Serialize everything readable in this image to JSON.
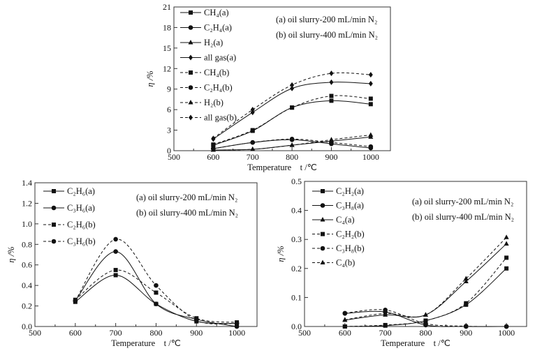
{
  "chart_data": [
    {
      "id": "top",
      "type": "line",
      "title": "",
      "xlabel": "Temperature    t /℃",
      "ylabel": "η /%",
      "xlim": [
        500,
        1050
      ],
      "ylim": [
        0,
        21
      ],
      "xticks": [
        500,
        600,
        700,
        800,
        900,
        1000
      ],
      "yticks": [
        0,
        3,
        6,
        9,
        12,
        15,
        18,
        21
      ],
      "annotations": [
        "(a) oil slurry-200 mL/min N₂",
        "(b) oil slurry-400 mL/min N₂"
      ],
      "x": [
        600,
        700,
        800,
        900,
        1000
      ],
      "series": [
        {
          "name": "CH₄(a)",
          "line": "solid",
          "marker": "square",
          "values": [
            0.8,
            2.9,
            6.3,
            7.3,
            6.8
          ]
        },
        {
          "name": "C₂H₄(a)",
          "line": "solid",
          "marker": "circle",
          "values": [
            0.3,
            1.2,
            1.6,
            1.0,
            0.4
          ]
        },
        {
          "name": "H₂(a)",
          "line": "solid",
          "marker": "triangle",
          "values": [
            0.1,
            0.2,
            0.8,
            1.4,
            2.0
          ]
        },
        {
          "name": "all gas(a)",
          "line": "solid",
          "marker": "diamond",
          "values": [
            1.7,
            5.6,
            9.1,
            10.0,
            9.8
          ]
        },
        {
          "name": "CH₄(b)",
          "line": "dashed",
          "marker": "square",
          "values": [
            0.9,
            3.0,
            6.3,
            8.0,
            7.6
          ]
        },
        {
          "name": "C₂H₄(b)",
          "line": "dashed",
          "marker": "circle",
          "values": [
            0.3,
            1.2,
            1.7,
            1.2,
            0.6
          ]
        },
        {
          "name": "H₂(b)",
          "line": "dashed",
          "marker": "triangle",
          "values": [
            0.1,
            0.2,
            0.8,
            1.6,
            2.3
          ]
        },
        {
          "name": "all gas(b)",
          "line": "dashed",
          "marker": "diamond",
          "values": [
            1.8,
            6.0,
            9.6,
            11.3,
            11.1
          ]
        }
      ]
    },
    {
      "id": "bottom-left",
      "type": "line",
      "title": "",
      "xlabel": "Temperature    t /℃",
      "ylabel": "η /%",
      "xlim": [
        500,
        1050
      ],
      "ylim": [
        0,
        1.4
      ],
      "xticks": [
        500,
        600,
        700,
        800,
        900,
        1000
      ],
      "yticks": [
        0.0,
        0.2,
        0.4,
        0.6,
        0.8,
        1.0,
        1.2,
        1.4
      ],
      "annotations": [
        "(a) oil slurry-200 mL/min N₂",
        "(b) oil slurry-400 mL/min N₂"
      ],
      "x": [
        600,
        700,
        800,
        900,
        1000
      ],
      "series": [
        {
          "name": "C₂H₆(a)",
          "line": "solid",
          "marker": "square",
          "values": [
            0.24,
            0.5,
            0.22,
            0.05,
            0.03
          ]
        },
        {
          "name": "C₃H₆(a)",
          "line": "solid",
          "marker": "circle",
          "values": [
            0.25,
            0.73,
            0.22,
            0.07,
            0.0
          ]
        },
        {
          "name": "C₂H₆(b)",
          "line": "dashed",
          "marker": "square",
          "values": [
            0.26,
            0.55,
            0.33,
            0.08,
            0.04
          ]
        },
        {
          "name": "C₃H₆(b)",
          "line": "dashed",
          "marker": "circle",
          "values": [
            0.25,
            0.85,
            0.4,
            0.06,
            0.03
          ]
        }
      ]
    },
    {
      "id": "bottom-right",
      "type": "line",
      "title": "",
      "xlabel": "Temperature    t /℃",
      "ylabel": "η /%",
      "xlim": [
        500,
        1050
      ],
      "ylim": [
        0,
        0.5
      ],
      "xticks": [
        500,
        600,
        700,
        800,
        900,
        1000
      ],
      "yticks": [
        0.0,
        0.1,
        0.2,
        0.3,
        0.4,
        0.5
      ],
      "annotations": [
        "(a) oil slurry-200 mL/min N₂",
        "(b) oil slurry-400 mL/min N₂"
      ],
      "x": [
        600,
        700,
        800,
        900,
        1000
      ],
      "series": [
        {
          "name": "C₂H₂(a)",
          "line": "solid",
          "marker": "square",
          "values": [
            0.0,
            0.003,
            0.02,
            0.075,
            0.2
          ]
        },
        {
          "name": "C₃H₈(a)",
          "line": "solid",
          "marker": "circle",
          "values": [
            0.045,
            0.05,
            0.005,
            0.0,
            0.0
          ]
        },
        {
          "name": "C₄(a)",
          "line": "solid",
          "marker": "triangle",
          "values": [
            0.022,
            0.04,
            0.04,
            0.155,
            0.285
          ]
        },
        {
          "name": "C₂H₂(b)",
          "line": "dashed",
          "marker": "square",
          "values": [
            0.0,
            0.005,
            0.02,
            0.08,
            0.237
          ]
        },
        {
          "name": "C₃H₈(b)",
          "line": "dashed",
          "marker": "circle",
          "values": [
            0.046,
            0.057,
            0.01,
            0.001,
            0.0
          ]
        },
        {
          "name": "C₄(b)",
          "line": "dashed",
          "marker": "triangle",
          "values": [
            0.023,
            0.045,
            0.04,
            0.165,
            0.307
          ]
        }
      ]
    }
  ]
}
